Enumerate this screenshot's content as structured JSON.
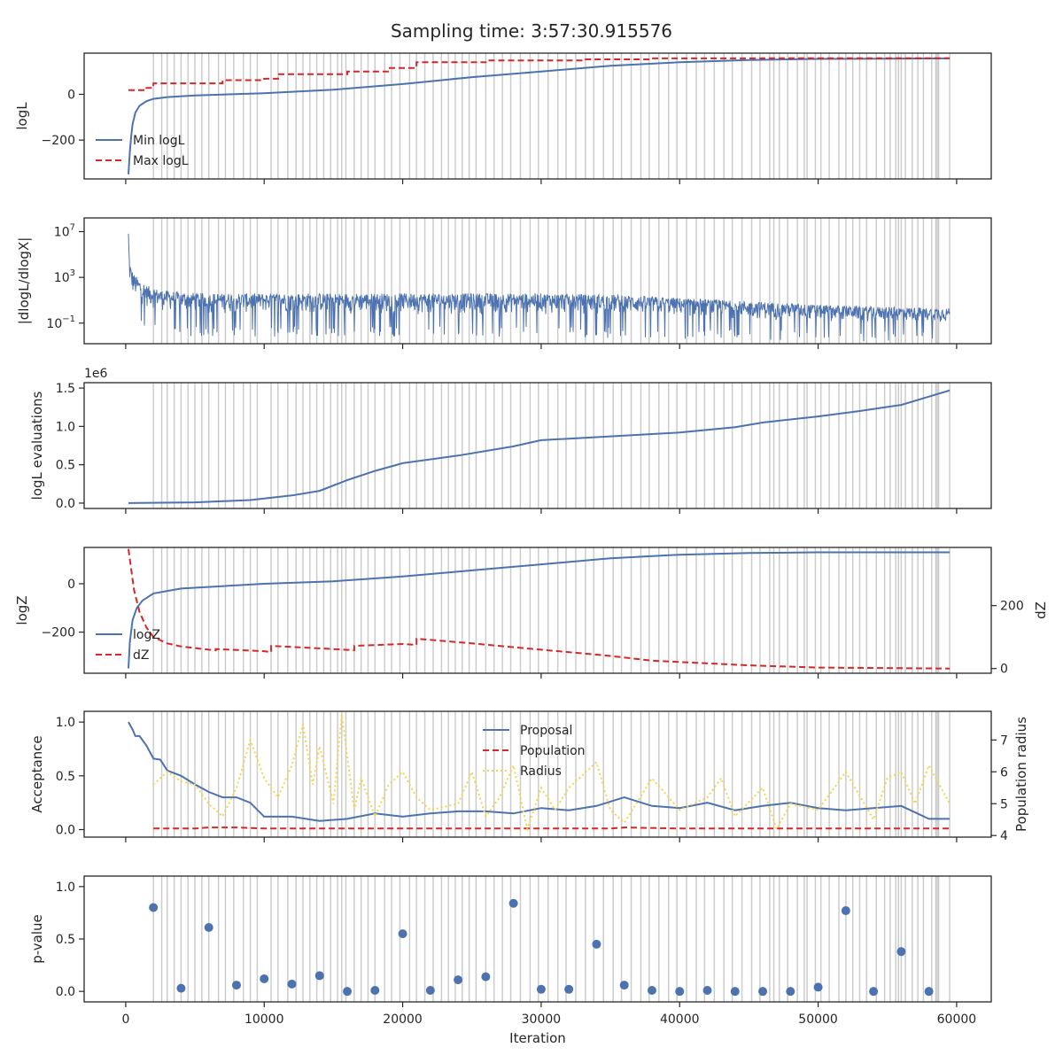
{
  "figure": {
    "title": "Sampling time: 3:57:30.915576"
  },
  "colors": {
    "blue": "#4c72b0",
    "red": "#d62728",
    "yellow": "#f5d547",
    "vline": "#cccccc",
    "frame": "#262626"
  },
  "chart_data": [
    {
      "id": "logl",
      "type": "line",
      "ylabel": "logL",
      "xlim": [
        -3000,
        62500
      ],
      "ylim": [
        -370,
        180
      ],
      "yticks": [
        {
          "v": 0,
          "label": "0"
        },
        {
          "v": -200,
          "label": "−200"
        }
      ],
      "legend": {
        "placement": "lower-left",
        "entries": [
          "Min logL",
          "Max logL"
        ]
      },
      "series": [
        {
          "name": "Min logL",
          "color": "blue",
          "style": "solid",
          "x": [
            200,
            300,
            400,
            500,
            700,
            1000,
            1500,
            2000,
            3000,
            5000,
            10000,
            15000,
            20000,
            25000,
            30000,
            35000,
            40000,
            45000,
            50000,
            55000,
            59500
          ],
          "y": [
            -350,
            -250,
            -180,
            -130,
            -80,
            -50,
            -30,
            -20,
            -12,
            -5,
            5,
            20,
            45,
            75,
            100,
            125,
            140,
            150,
            155,
            156,
            157
          ]
        },
        {
          "name": "Max logL",
          "color": "red",
          "style": "dashed",
          "x": [
            200,
            1500,
            1500,
            2000,
            2000,
            7000,
            7000,
            10000,
            10000,
            11000,
            11000,
            16000,
            16000,
            19000,
            19000,
            21000,
            21000,
            26000,
            26000,
            33000,
            33000,
            38000,
            38000,
            46000,
            46000,
            59500
          ],
          "y": [
            18,
            18,
            28,
            28,
            48,
            48,
            62,
            62,
            68,
            68,
            88,
            88,
            100,
            100,
            115,
            115,
            140,
            140,
            148,
            148,
            153,
            153,
            157,
            157,
            158,
            158
          ]
        }
      ]
    },
    {
      "id": "dlogl",
      "type": "line",
      "ylabel": "|dlogL/dlogX|",
      "scale": "log",
      "xlim": [
        -3000,
        62500
      ],
      "ylim": [
        -2.8,
        8.2
      ],
      "yticks": [
        {
          "v": 7,
          "label": "10",
          "sup": "7"
        },
        {
          "v": 3,
          "label": "10",
          "sup": "3"
        },
        {
          "v": -1,
          "label": "10",
          "sup": "−1"
        }
      ],
      "series": [
        {
          "name": "",
          "color": "blue",
          "style": "solid",
          "noise": true,
          "x": [
            200,
            250,
            300,
            400,
            600,
            1000,
            1500,
            2500,
            4000,
            6000,
            10000,
            20000,
            30000,
            35000,
            40000,
            45000,
            50000,
            55000,
            59500
          ],
          "upper": [
            7.5,
            5.2,
            4.5,
            3.8,
            3.3,
            2.8,
            2.3,
            1.9,
            1.7,
            1.6,
            1.6,
            1.6,
            1.6,
            1.5,
            1.2,
            0.9,
            0.6,
            0.4,
            0.3
          ],
          "lower": [
            2.0,
            1.0,
            0.5,
            0.0,
            -0.3,
            -0.5,
            -0.8,
            -1.0,
            -1.2,
            -1.3,
            -1.3,
            -1.3,
            -1.3,
            -1.4,
            -1.5,
            -1.6,
            -1.7,
            -1.7,
            -1.8
          ]
        }
      ]
    },
    {
      "id": "evals",
      "type": "line",
      "ylabel": "logL evaluations",
      "offset_text": "1e6",
      "xlim": [
        -3000,
        62500
      ],
      "ylim": [
        -0.07,
        1.57
      ],
      "yticks": [
        {
          "v": 0,
          "label": "0.0"
        },
        {
          "v": 0.5,
          "label": "0.5"
        },
        {
          "v": 1.0,
          "label": "1.0"
        },
        {
          "v": 1.5,
          "label": "1.5"
        }
      ],
      "series": [
        {
          "name": "",
          "color": "blue",
          "style": "solid",
          "x": [
            200,
            5000,
            9000,
            12000,
            14000,
            16000,
            18000,
            20000,
            24000,
            28000,
            30000,
            35000,
            40000,
            44000,
            46000,
            50000,
            53000,
            56000,
            59500
          ],
          "y": [
            0,
            0.01,
            0.04,
            0.1,
            0.16,
            0.3,
            0.42,
            0.52,
            0.62,
            0.74,
            0.82,
            0.87,
            0.92,
            0.99,
            1.05,
            1.13,
            1.2,
            1.28,
            1.47
          ]
        }
      ]
    },
    {
      "id": "logz",
      "type": "line",
      "ylabel": "logZ",
      "ylabel_right": "dZ",
      "xlim": [
        -3000,
        62500
      ],
      "ylim": [
        -370,
        150
      ],
      "ylim_right": [
        -15,
        385
      ],
      "yticks": [
        {
          "v": 0,
          "label": "0"
        },
        {
          "v": -200,
          "label": "−200"
        }
      ],
      "yticks_right": [
        {
          "v": 200,
          "label": "200"
        },
        {
          "v": 0,
          "label": "0"
        }
      ],
      "legend": {
        "placement": "lower-left",
        "entries": [
          "logZ",
          "dZ"
        ]
      },
      "series": [
        {
          "name": "logZ",
          "color": "blue",
          "style": "solid",
          "axis": "left",
          "x": [
            200,
            300,
            500,
            800,
            1200,
            2000,
            4000,
            10000,
            15000,
            20000,
            25000,
            30000,
            35000,
            40000,
            45000,
            50000,
            59500
          ],
          "y": [
            -350,
            -240,
            -150,
            -100,
            -70,
            -40,
            -20,
            0,
            10,
            30,
            55,
            80,
            105,
            120,
            127,
            130,
            130
          ]
        },
        {
          "name": "dZ",
          "color": "red",
          "style": "dashed",
          "axis": "right",
          "x": [
            200,
            600,
            1000,
            1500,
            2000,
            3000,
            4000,
            6000,
            6500,
            6500,
            10000,
            10500,
            10500,
            15000,
            16500,
            16500,
            20000,
            21000,
            21000,
            25000,
            30000,
            35000,
            38000,
            45000,
            50000,
            59500
          ],
          "y": [
            380,
            250,
            180,
            130,
            100,
            80,
            70,
            60,
            58,
            62,
            55,
            52,
            72,
            62,
            58,
            72,
            78,
            75,
            95,
            80,
            60,
            40,
            25,
            10,
            3,
            0
          ]
        }
      ]
    },
    {
      "id": "accept",
      "type": "line",
      "ylabel": "Acceptance",
      "ylabel_right": "Population radius",
      "xlim": [
        -3000,
        62500
      ],
      "ylim": [
        -0.07,
        1.1
      ],
      "ylim_right": [
        3.95,
        7.9
      ],
      "yticks": [
        {
          "v": 0,
          "label": "0.0"
        },
        {
          "v": 0.5,
          "label": "0.5"
        },
        {
          "v": 1.0,
          "label": "1.0"
        }
      ],
      "yticks_right": [
        {
          "v": 4,
          "label": "4"
        },
        {
          "v": 5,
          "label": "5"
        },
        {
          "v": 6,
          "label": "6"
        },
        {
          "v": 7,
          "label": "7"
        }
      ],
      "legend": {
        "placement": "upper-center",
        "entries": [
          "Proposal",
          "Population",
          "Radius"
        ]
      },
      "series": [
        {
          "name": "Proposal",
          "color": "blue",
          "style": "solid",
          "axis": "left",
          "x": [
            200,
            500,
            700,
            1000,
            1500,
            2000,
            2500,
            3000,
            4000,
            5000,
            6000,
            7000,
            8000,
            9000,
            10000,
            12000,
            14000,
            16000,
            18000,
            20000,
            22000,
            24000,
            26000,
            28000,
            30000,
            32000,
            34000,
            36000,
            38000,
            40000,
            42000,
            44000,
            46000,
            48000,
            50000,
            52000,
            54000,
            56000,
            58000,
            59500
          ],
          "y": [
            1.0,
            0.93,
            0.87,
            0.87,
            0.78,
            0.66,
            0.65,
            0.55,
            0.5,
            0.42,
            0.35,
            0.3,
            0.3,
            0.25,
            0.12,
            0.12,
            0.08,
            0.1,
            0.15,
            0.12,
            0.15,
            0.17,
            0.17,
            0.15,
            0.2,
            0.18,
            0.22,
            0.3,
            0.22,
            0.2,
            0.25,
            0.18,
            0.22,
            0.25,
            0.2,
            0.18,
            0.2,
            0.22,
            0.1,
            0.1
          ]
        },
        {
          "name": "Population",
          "color": "red",
          "style": "dashed",
          "axis": "left",
          "x": [
            2000,
            5000,
            6000,
            8000,
            10000,
            20000,
            30000,
            35000,
            36000,
            40000,
            50000,
            59500
          ],
          "y": [
            0.01,
            0.01,
            0.02,
            0.02,
            0.01,
            0.01,
            0.01,
            0.01,
            0.02,
            0.01,
            0.01,
            0.01
          ]
        },
        {
          "name": "Radius",
          "color": "yellow",
          "style": "dotted",
          "axis": "right",
          "x": [
            2000,
            3000,
            4000,
            5000,
            6000,
            7000,
            8000,
            9000,
            10000,
            11000,
            12000,
            12800,
            13500,
            14000,
            15000,
            15600,
            16500,
            17000,
            18000,
            19000,
            20000,
            21000,
            22000,
            24000,
            25000,
            26000,
            27000,
            28000,
            29000,
            30000,
            31000,
            32000,
            34000,
            35000,
            36000,
            38000,
            40000,
            42000,
            43000,
            44000,
            46000,
            47000,
            48000,
            50000,
            52000,
            54000,
            55000,
            56000,
            57000,
            58000,
            59500
          ],
          "y": [
            5.6,
            6.0,
            5.7,
            5.6,
            5.0,
            4.6,
            5.5,
            7.0,
            5.8,
            5.2,
            6.2,
            7.5,
            5.6,
            6.8,
            5.0,
            7.8,
            4.8,
            5.8,
            4.6,
            5.6,
            6.0,
            5.2,
            4.8,
            5.0,
            6.0,
            4.6,
            5.2,
            6.2,
            4.2,
            5.5,
            4.8,
            5.5,
            6.3,
            4.8,
            4.4,
            5.8,
            4.8,
            5.2,
            5.8,
            4.6,
            5.5,
            4.2,
            5.0,
            4.8,
            6.0,
            4.5,
            5.8,
            6.0,
            5.0,
            6.2,
            5.0
          ]
        }
      ]
    },
    {
      "id": "pvalue",
      "type": "scatter",
      "ylabel": "p-value",
      "xlabel": "Iteration",
      "xlim": [
        -3000,
        62500
      ],
      "ylim": [
        -0.1,
        1.1
      ],
      "yticks": [
        {
          "v": 0,
          "label": "0.0"
        },
        {
          "v": 0.5,
          "label": "0.5"
        },
        {
          "v": 1.0,
          "label": "1.0"
        }
      ],
      "xticks": [
        {
          "v": 0,
          "label": "0"
        },
        {
          "v": 10000,
          "label": "10000"
        },
        {
          "v": 20000,
          "label": "20000"
        },
        {
          "v": 30000,
          "label": "30000"
        },
        {
          "v": 40000,
          "label": "40000"
        },
        {
          "v": 50000,
          "label": "50000"
        },
        {
          "v": 60000,
          "label": "60000"
        }
      ],
      "series": [
        {
          "name": "",
          "color": "blue",
          "x": [
            2000,
            4000,
            6000,
            8000,
            10000,
            12000,
            14000,
            16000,
            18000,
            20000,
            22000,
            24000,
            26000,
            28000,
            30000,
            32000,
            34000,
            36000,
            38000,
            40000,
            42000,
            44000,
            46000,
            48000,
            50000,
            52000,
            54000,
            56000,
            58000
          ],
          "y": [
            0.8,
            0.03,
            0.61,
            0.06,
            0.12,
            0.07,
            0.15,
            0.0,
            0.01,
            0.55,
            0.01,
            0.11,
            0.14,
            0.84,
            0.02,
            0.02,
            0.45,
            0.06,
            0.01,
            0.0,
            0.01,
            0.0,
            0.0,
            0.0,
            0.04,
            0.77,
            0.0,
            0.38,
            0.0
          ]
        }
      ]
    }
  ],
  "update_iterations": [
    2000,
    2600,
    3000,
    3500,
    4000,
    4500,
    5000,
    5500,
    6000,
    6700,
    7200,
    7800,
    8500,
    9000,
    9500,
    10500,
    11000,
    11700,
    12300,
    12800,
    13300,
    13800,
    14300,
    14800,
    15300,
    15600,
    15900,
    16500,
    17000,
    17500,
    18000,
    18700,
    19200,
    19800,
    20500,
    21000,
    21600,
    22200,
    22800,
    23300,
    23800,
    24300,
    24800,
    25300,
    26000,
    26600,
    27200,
    27800,
    28500,
    29200,
    29800,
    30500,
    31200,
    31800,
    32500,
    33200,
    33800,
    34500,
    35200,
    35800,
    36500,
    37200,
    37800,
    38500,
    39200,
    39800,
    40500,
    41200,
    41800,
    42500,
    43200,
    43800,
    44500,
    45200,
    45800,
    46500,
    46800,
    47200,
    47800,
    48500,
    49000,
    49200,
    49800,
    50200,
    50800,
    51500,
    52000,
    52500,
    53000,
    53500,
    54200,
    54800,
    55200,
    55600,
    55800,
    56000,
    56300,
    56800,
    57200,
    57600,
    58200,
    58500,
    58600,
    58700,
    59500
  ]
}
